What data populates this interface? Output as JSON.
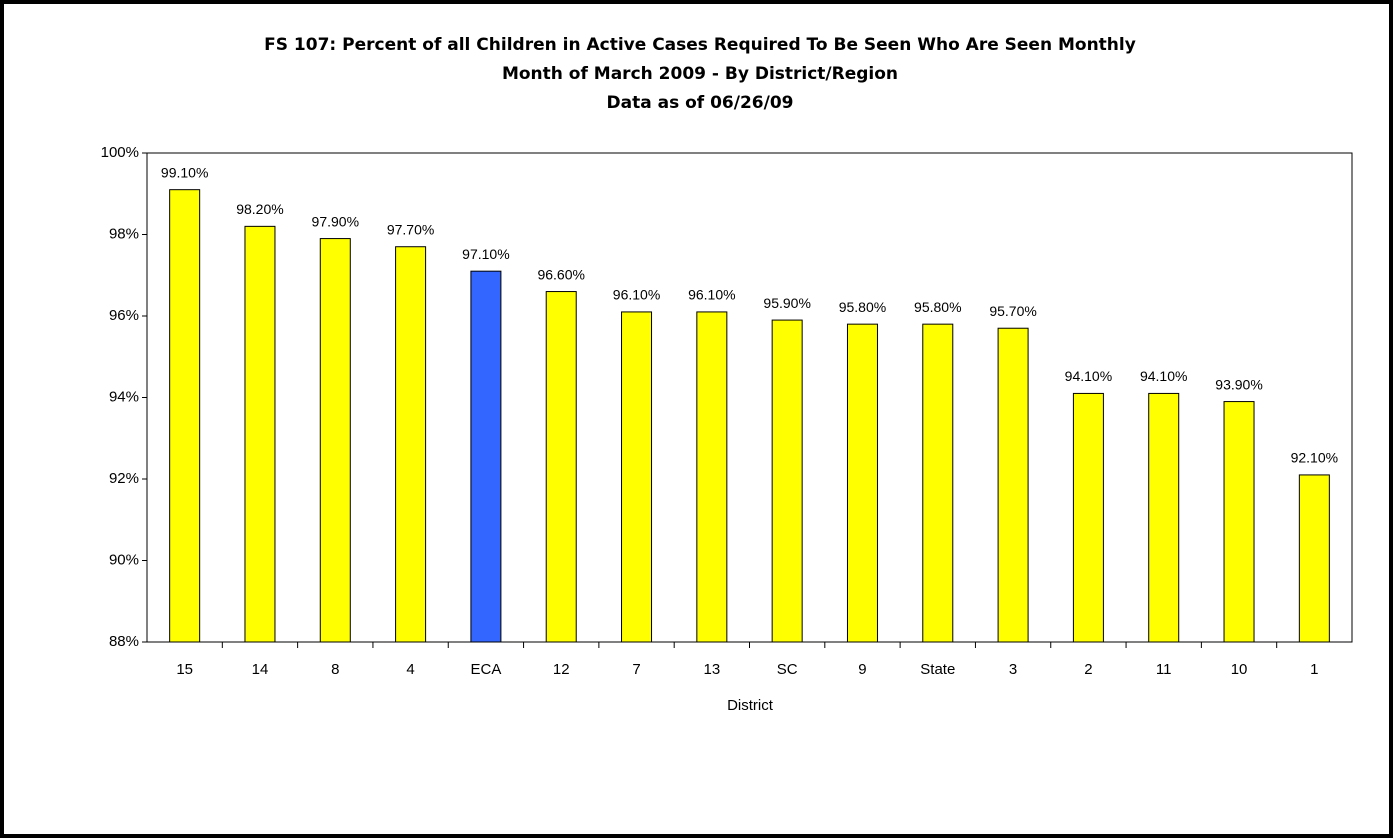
{
  "chart_data": {
    "type": "bar",
    "title": [
      "FS 107: Percent of all Children in Active Cases Required To Be Seen Who Are Seen Monthly",
      "Month of March  2009  - By District/Region",
      "Data as of 06/26/09"
    ],
    "x_label": "District",
    "categories": [
      "15",
      "14",
      "8",
      "4",
      "ECA",
      "12",
      "7",
      "13",
      "SC",
      "9",
      "State",
      "3",
      "2",
      "11",
      "10",
      "1"
    ],
    "values": [
      99.1,
      98.2,
      97.9,
      97.7,
      97.1,
      96.6,
      96.1,
      96.1,
      95.9,
      95.8,
      95.8,
      95.7,
      94.1,
      94.1,
      93.9,
      92.1
    ],
    "value_labels": [
      "99.10%",
      "98.20%",
      "97.90%",
      "97.70%",
      "97.10%",
      "96.60%",
      "96.10%",
      "96.10%",
      "95.90%",
      "95.80%",
      "95.80%",
      "95.70%",
      "94.10%",
      "94.10%",
      "93.90%",
      "92.10%"
    ],
    "colors": [
      "#ffff00",
      "#ffff00",
      "#ffff00",
      "#ffff00",
      "#3366ff",
      "#ffff00",
      "#ffff00",
      "#ffff00",
      "#ffff00",
      "#ffff00",
      "#ffff00",
      "#ffff00",
      "#ffff00",
      "#ffff00",
      "#ffff00",
      "#ffff00"
    ],
    "ylim": [
      88,
      100
    ],
    "yticks": [
      {
        "value": 88,
        "label": "88%"
      },
      {
        "value": 90,
        "label": "90%"
      },
      {
        "value": 92,
        "label": "92%"
      },
      {
        "value": 94,
        "label": "94%"
      },
      {
        "value": 96,
        "label": "96%"
      },
      {
        "value": 98,
        "label": "98%"
      },
      {
        "value": 100,
        "label": "100%"
      }
    ],
    "grid": false
  }
}
